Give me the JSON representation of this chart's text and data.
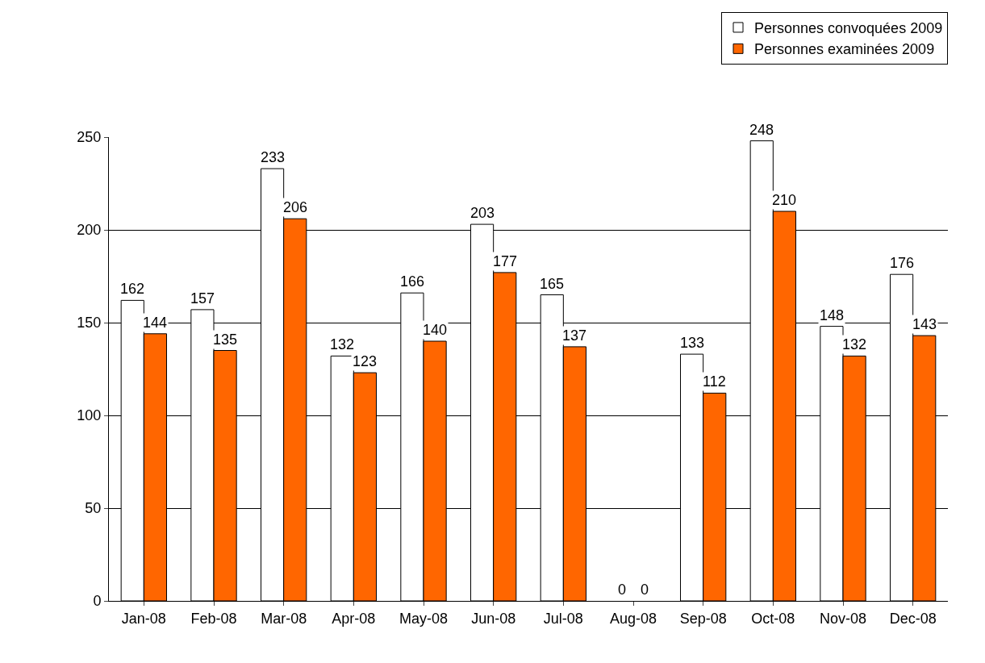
{
  "chart_data": {
    "type": "bar",
    "categories": [
      "Jan-08",
      "Feb-08",
      "Mar-08",
      "Apr-08",
      "May-08",
      "Jun-08",
      "Jul-08",
      "Aug-08",
      "Sep-08",
      "Oct-08",
      "Nov-08",
      "Dec-08"
    ],
    "series": [
      {
        "name": "Personnes convoquées 2009",
        "color": "#ffffff",
        "values": [
          162,
          157,
          233,
          132,
          166,
          203,
          165,
          0,
          133,
          248,
          148,
          176
        ]
      },
      {
        "name": "Personnes examinées 2009",
        "color": "#ff6600",
        "values": [
          144,
          135,
          206,
          123,
          140,
          177,
          137,
          0,
          112,
          210,
          132,
          143
        ]
      }
    ],
    "ylim": [
      0,
      250
    ],
    "yticks": [
      0,
      50,
      100,
      150,
      200,
      250
    ],
    "grid": "y",
    "legend": "top right",
    "data_labels": true
  }
}
